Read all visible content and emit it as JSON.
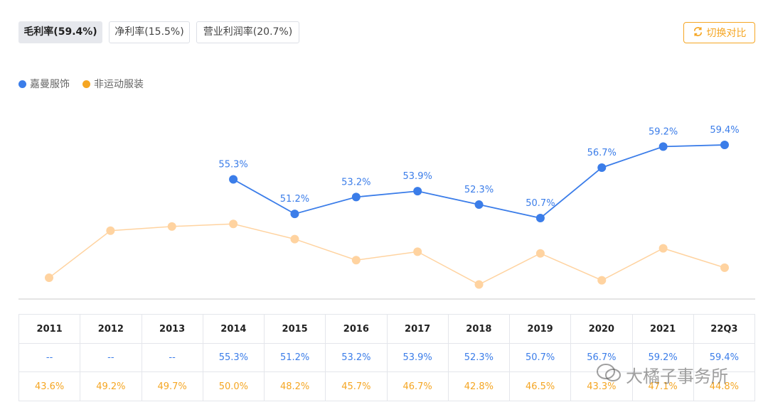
{
  "tabs": [
    {
      "label": "毛利率(59.4%)",
      "active": true
    },
    {
      "label": "净利率(15.5%)",
      "active": false
    },
    {
      "label": "营业利润率(20.7%)",
      "active": false
    }
  ],
  "switch_button": {
    "label": "切换对比",
    "icon": "swap-icon"
  },
  "colors": {
    "blue": "#3b7de9",
    "orange": "#f5a623",
    "orange_line": "#ffd3a0"
  },
  "chart_data": {
    "type": "line",
    "categories": [
      "2011",
      "2012",
      "2013",
      "2014",
      "2015",
      "2016",
      "2017",
      "2018",
      "2019",
      "2020",
      "2021",
      "22Q3"
    ],
    "series": [
      {
        "name": "嘉曼服饰",
        "color": "#3b7de9",
        "values": [
          null,
          null,
          null,
          55.3,
          51.2,
          53.2,
          53.9,
          52.3,
          50.7,
          56.7,
          59.2,
          59.4
        ],
        "labels": [
          "--",
          "--",
          "--",
          "55.3%",
          "51.2%",
          "53.2%",
          "53.9%",
          "52.3%",
          "50.7%",
          "56.7%",
          "59.2%",
          "59.4%"
        ]
      },
      {
        "name": "非运动服装",
        "color": "#f5a623",
        "values": [
          43.6,
          49.2,
          49.7,
          50.0,
          48.2,
          45.7,
          46.7,
          42.8,
          46.5,
          43.3,
          47.1,
          44.8
        ],
        "labels": [
          "43.6%",
          "49.2%",
          "49.7%",
          "50.0%",
          "48.2%",
          "45.7%",
          "46.7%",
          "42.8%",
          "46.5%",
          "43.3%",
          "47.1%",
          "44.8%"
        ]
      }
    ],
    "legend_position": "top-left",
    "grid": false
  },
  "watermark": "大橘子事务所"
}
